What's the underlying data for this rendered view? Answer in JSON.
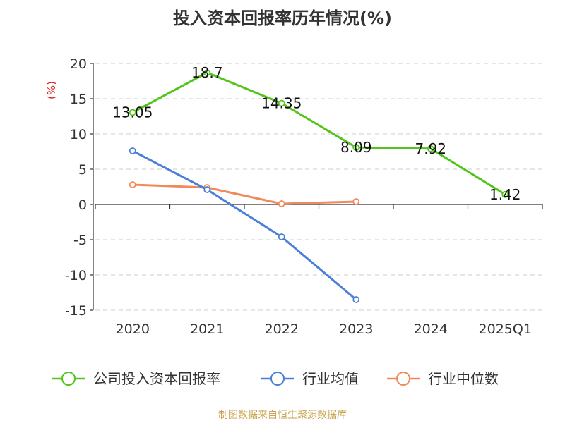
{
  "chart_data": {
    "type": "line",
    "title": "投入资本回报率历年情况(%)",
    "ylabel": "(%)",
    "xlabel": "",
    "categories": [
      "2020",
      "2021",
      "2022",
      "2023",
      "2024",
      "2025Q1"
    ],
    "ylim": [
      -15,
      20
    ],
    "yticks": [
      20,
      15,
      10,
      5,
      0,
      -5,
      -10,
      -15
    ],
    "grid": true,
    "legend_position": "bottom",
    "series": [
      {
        "name": "公司投入资本回报率",
        "color": "#52c41a",
        "values": [
          13.05,
          18.7,
          14.35,
          8.09,
          7.92,
          1.42
        ],
        "labels": [
          "13.05",
          "18.7",
          "14.35",
          "8.09",
          "7.92",
          "1.42"
        ]
      },
      {
        "name": "行业均值",
        "color": "#4a7fd9",
        "values": [
          7.6,
          2.1,
          -4.6,
          -13.5,
          null,
          null
        ]
      },
      {
        "name": "行业中位数",
        "color": "#f2895a",
        "values": [
          2.8,
          2.4,
          0.1,
          0.4,
          null,
          null
        ]
      }
    ],
    "source": "制图数据来自恒生聚源数据库"
  }
}
